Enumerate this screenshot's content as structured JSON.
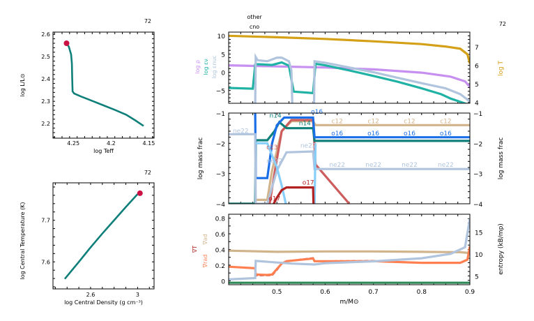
{
  "chart_data": [
    {
      "id": "hr",
      "type": "line",
      "title_right": "72",
      "xlabel": "log Teff",
      "ylabel": "log L/L⊙",
      "xlim": [
        4.277,
        4.143
      ],
      "ylim": [
        2.135,
        2.61
      ],
      "xticks": [
        4.25,
        4.2,
        4.15
      ],
      "xtick_labels": [
        "4.25",
        "4.2",
        "4.15"
      ],
      "yticks": [
        2.2,
        2.3,
        2.4,
        2.5,
        2.6
      ],
      "ytick_labels": [
        "2.2",
        "2.3",
        "2.4",
        "2.5",
        "2.6"
      ],
      "series": [
        {
          "name": "track",
          "color": "#0f7f7a",
          "x": [
            4.259,
            4.256,
            4.253,
            4.252,
            4.2515,
            4.251,
            4.249,
            4.24,
            4.225,
            4.21,
            4.195,
            4.18,
            4.168,
            4.157
          ],
          "y": [
            2.559,
            2.545,
            2.51,
            2.47,
            2.4,
            2.345,
            2.335,
            2.322,
            2.302,
            2.282,
            2.262,
            2.24,
            2.215,
            2.19
          ]
        }
      ],
      "marker": {
        "x": 4.259,
        "y": 2.56,
        "color": "#cc1144"
      }
    },
    {
      "id": "rhoT",
      "type": "line",
      "title_right": "72",
      "xlabel": "log Central Density (g cm⁻³)",
      "ylabel": "log Central Temperature (K)",
      "xlim": [
        2.28,
        3.14
      ],
      "ylim": [
        7.535,
        7.79
      ],
      "xticks": [
        2.6,
        3.0
      ],
      "xtick_labels": [
        "2.6",
        "3"
      ],
      "yticks": [
        7.6,
        7.7
      ],
      "ytick_labels": [
        "7.6",
        "7.7"
      ],
      "series": [
        {
          "name": "track",
          "color": "#0f7f7a",
          "x": [
            2.38,
            2.5,
            2.6,
            2.7,
            2.8,
            2.9,
            3.0
          ],
          "y": [
            7.559,
            7.6,
            7.635,
            7.668,
            7.7,
            7.732,
            7.763
          ]
        }
      ],
      "marker": {
        "x": 3.02,
        "y": 7.765,
        "color": "#cc1144"
      }
    },
    {
      "id": "profile-top",
      "type": "line",
      "title_right": "72",
      "top_labels": [
        "other",
        "cno"
      ],
      "xlim": [
        0.4,
        0.9
      ],
      "ylim_left": [
        -8.5,
        11
      ],
      "ylim_right": [
        3.95,
        7.8
      ],
      "yticks_left": [
        -5,
        0,
        5,
        10
      ],
      "ytick_labels_left": [
        "−5",
        "0",
        "5",
        "10"
      ],
      "yticks_right": [
        4,
        5,
        6,
        7
      ],
      "ytick_labels_right": [
        "4",
        "5",
        "6",
        "7"
      ],
      "ylabel_left": [
        {
          "text": "log ρ",
          "color": "#c68ff0"
        },
        {
          "text": "log εν",
          "color": "#20b2a4"
        },
        {
          "text": "log εnuc",
          "color": "#b0c4de"
        }
      ],
      "ylabel_right": {
        "text": "log T",
        "color": "#d4a017"
      },
      "series": [
        {
          "name": "log T",
          "axis": "right",
          "color": "#d4a017",
          "x": [
            0.4,
            0.5,
            0.6,
            0.7,
            0.8,
            0.85,
            0.88,
            0.895,
            0.9
          ],
          "y": [
            7.6,
            7.52,
            7.43,
            7.3,
            7.15,
            7.02,
            6.9,
            6.6,
            6.1
          ]
        },
        {
          "name": "log rho",
          "axis": "left",
          "color": "#c68ff0",
          "x": [
            0.4,
            0.5,
            0.6,
            0.7,
            0.8,
            0.86,
            0.89,
            0.9
          ],
          "y": [
            1.9,
            1.6,
            1.3,
            0.8,
            -0.1,
            -1.2,
            -2.5,
            -4
          ]
        },
        {
          "name": "log eps_nu",
          "axis": "left",
          "color": "#20b2a4",
          "x": [
            0.4,
            0.45,
            0.455,
            0.46,
            0.49,
            0.51,
            0.525,
            0.53,
            0.535,
            0.575,
            0.58,
            0.6,
            0.65,
            0.7,
            0.75,
            0.8,
            0.84,
            0.86,
            0.9
          ],
          "y": [
            -4.3,
            -4.5,
            2.1,
            2.2,
            2.0,
            2.7,
            1.8,
            -2,
            -5.3,
            -5.7,
            2.3,
            1.9,
            0.5,
            -1,
            -2.6,
            -4.4,
            -6,
            -7.2,
            -9
          ]
        },
        {
          "name": "log eps_nuc",
          "axis": "left",
          "color": "#b0c4de",
          "x": [
            0.455,
            0.456,
            0.46,
            0.48,
            0.5,
            0.51,
            0.525,
            0.53,
            0.532,
            0.577,
            0.578,
            0.6,
            0.65,
            0.7,
            0.75,
            0.8,
            0.85,
            0.88,
            0.9
          ],
          "y": [
            -9,
            4.2,
            3.3,
            3.0,
            4.0,
            4.0,
            3.0,
            0.5,
            -9,
            -9,
            3.0,
            2.6,
            1.3,
            0,
            -1.5,
            -3,
            -4.4,
            -6,
            -8
          ]
        }
      ]
    },
    {
      "id": "profile-mid",
      "type": "line",
      "xlim": [
        0.4,
        0.9
      ],
      "ylim": [
        -4,
        -1
      ],
      "yticks": [
        -4,
        -3,
        -2,
        -1
      ],
      "ytick_labels": [
        "−4",
        "−3",
        "−2",
        "−1"
      ],
      "ylabel_left": "log mass frac",
      "ylabel_right": "log mass frac",
      "series": [
        {
          "name": "c12",
          "color": "#d2b48c",
          "x": [
            0.4,
            0.455,
            0.456,
            0.48,
            0.49,
            0.51,
            0.53,
            0.575,
            0.58,
            0.9
          ],
          "y": [
            -4,
            -4,
            -3.87,
            -3.87,
            -2.9,
            -1.6,
            -1.27,
            -1.27,
            -1.4,
            -1.4
          ]
        },
        {
          "name": "c13",
          "color": "#cd5c5c",
          "x": [
            0.485,
            0.495,
            0.51,
            0.53,
            0.575,
            0.58,
            0.65
          ],
          "y": [
            -4,
            -3.0,
            -1.6,
            -1.23,
            -1.23,
            -2.7,
            -4
          ]
        },
        {
          "name": "n14",
          "color": "#0f7f7a",
          "x": [
            0.4,
            0.455,
            0.456,
            0.48,
            0.495,
            0.505,
            0.52,
            0.575,
            0.578,
            0.9
          ],
          "y": [
            -4,
            -4,
            -1.9,
            -1.9,
            -1.6,
            -1.3,
            -1.5,
            -1.5,
            -1.92,
            -1.92
          ]
        },
        {
          "name": "o16",
          "color": "#1a6fe6",
          "x": [
            0.455,
            0.456,
            0.48,
            0.49,
            0.5,
            0.515,
            0.53,
            0.575,
            0.578,
            0.9
          ],
          "y": [
            -1,
            -3.15,
            -3.15,
            -2.0,
            -1.4,
            -1.15,
            -1.15,
            -1.15,
            -1.8,
            -1.8
          ]
        },
        {
          "name": "ne22",
          "color": "#b0c4de",
          "x": [
            0.4,
            0.455,
            0.456,
            0.48,
            0.5,
            0.52,
            0.575,
            0.578,
            0.9
          ],
          "y": [
            -1.7,
            -1.7,
            -4,
            -4,
            -2.9,
            -2.3,
            -2.27,
            -2.85,
            -2.85
          ]
        },
        {
          "name": "mg24",
          "color": "#87cefa",
          "x": [
            0.456,
            0.48,
            0.5,
            0.51,
            0.52,
            0.578,
            0.58
          ],
          "y": [
            -2.0,
            -2.0,
            -2.8,
            -3.4,
            -4.1,
            -4.1,
            -2.0
          ]
        },
        {
          "name": "o17",
          "color": "#b22222",
          "x": [
            0.49,
            0.5,
            0.51,
            0.52,
            0.575,
            0.576
          ],
          "y": [
            -4.1,
            -3.8,
            -3.55,
            -3.46,
            -3.46,
            -4.1
          ]
        }
      ],
      "annotations": [
        {
          "text": "ne22",
          "color": "#b0c4de",
          "x": 0.425,
          "y": -1.66
        },
        {
          "text": "n14",
          "color": "#0f7f7a",
          "x": 0.497,
          "y": -1.15
        },
        {
          "text": "c13",
          "color": "#cd5c5c",
          "x": 0.49,
          "y": -2.2
        },
        {
          "text": "ne22",
          "color": "#b0c4de",
          "x": 0.495,
          "y": -2.65
        },
        {
          "text": "o16",
          "color": "#1a6fe6",
          "x": 0.583,
          "y": -1.02
        },
        {
          "text": "n14",
          "color": "#0f7f7a",
          "x": 0.558,
          "y": -1.4
        },
        {
          "text": "ne22",
          "color": "#b0c4de",
          "x": 0.565,
          "y": -2.14
        },
        {
          "text": "o17",
          "color": "#b22222",
          "x": 0.565,
          "y": -3.36
        },
        {
          "text": "o17",
          "color": "#b22222",
          "x": 0.495,
          "y": -3.9
        },
        {
          "text": "c12",
          "color": "#d2b48c",
          "x": 0.625,
          "y": -1.33
        },
        {
          "text": "c12",
          "color": "#d2b48c",
          "x": 0.7,
          "y": -1.33
        },
        {
          "text": "c12",
          "color": "#d2b48c",
          "x": 0.775,
          "y": -1.33
        },
        {
          "text": "c12",
          "color": "#d2b48c",
          "x": 0.85,
          "y": -1.33
        },
        {
          "text": "o16",
          "color": "#1a6fe6",
          "x": 0.625,
          "y": -1.74
        },
        {
          "text": "o16",
          "color": "#1a6fe6",
          "x": 0.7,
          "y": -1.74
        },
        {
          "text": "o16",
          "color": "#1a6fe6",
          "x": 0.775,
          "y": -1.74
        },
        {
          "text": "o16",
          "color": "#1a6fe6",
          "x": 0.85,
          "y": -1.74
        },
        {
          "text": "ne22",
          "color": "#b0c4de",
          "x": 0.625,
          "y": -2.78
        },
        {
          "text": "ne22",
          "color": "#b0c4de",
          "x": 0.7,
          "y": -2.78
        },
        {
          "text": "ne22",
          "color": "#b0c4de",
          "x": 0.775,
          "y": -2.78
        },
        {
          "text": "ne22",
          "color": "#b0c4de",
          "x": 0.85,
          "y": -2.78
        }
      ]
    },
    {
      "id": "profile-bottom",
      "type": "line",
      "xlabel": "m/M⊙",
      "xlim": [
        0.4,
        0.9
      ],
      "xticks": [
        0.5,
        0.6,
        0.7,
        0.8,
        0.9
      ],
      "xtick_labels": [
        "0.5",
        "0.6",
        "0.7",
        "0.8",
        "0.9"
      ],
      "ylim_left": [
        -0.05,
        0.85
      ],
      "yticks_left": [
        0,
        0.2,
        0.4,
        0.6,
        0.8
      ],
      "ytick_labels_left": [
        "0",
        "0.2",
        "0.4",
        "0.6",
        "0.8"
      ],
      "ylim_right": [
        3,
        19
      ],
      "yticks_right": [
        5,
        10,
        15
      ],
      "ytick_labels_right": [
        "5",
        "10",
        "15"
      ],
      "ylabel_left": [
        {
          "text": "∇ad",
          "color": "#d2b48c"
        },
        {
          "text": "∇T",
          "color": "#b22222"
        },
        {
          "text": "∇rad",
          "color": "#ff7f50"
        }
      ],
      "ylabel_right": "entropy (kB/mp)",
      "series": [
        {
          "name": "grad_ad",
          "axis": "left",
          "color": "#d2b48c",
          "x": [
            0.4,
            0.5,
            0.6,
            0.7,
            0.8,
            0.88,
            0.9
          ],
          "y": [
            0.385,
            0.37,
            0.375,
            0.375,
            0.37,
            0.365,
            0.355
          ]
        },
        {
          "name": "grad_T",
          "axis": "left",
          "color": "#b22222",
          "dash": true,
          "x": [
            0.4,
            0.455,
            0.456,
            0.48,
            0.49,
            0.5,
            0.51,
            0.52,
            0.575,
            0.578,
            0.7,
            0.8,
            0.88,
            0.895,
            0.9
          ],
          "y": [
            0.18,
            0.16,
            0.07,
            0.07,
            0.07,
            0.14,
            0.22,
            0.25,
            0.29,
            0.25,
            0.255,
            0.23,
            0.23,
            0.27,
            0.45
          ]
        },
        {
          "name": "grad_rad",
          "axis": "left",
          "color": "#ff7f50",
          "x": [
            0.4,
            0.455,
            0.456,
            0.48,
            0.49,
            0.5,
            0.51,
            0.52,
            0.575,
            0.578,
            0.7,
            0.8,
            0.88,
            0.895,
            0.9
          ],
          "y": [
            0.18,
            0.16,
            0.08,
            0.075,
            0.08,
            0.15,
            0.22,
            0.25,
            0.285,
            0.25,
            0.25,
            0.23,
            0.23,
            0.27,
            0.44
          ]
        },
        {
          "name": "entropy",
          "axis": "right",
          "color": "#b0c4de",
          "x": [
            0.4,
            0.455,
            0.456,
            0.53,
            0.578,
            0.6,
            0.7,
            0.8,
            0.86,
            0.89,
            0.9
          ],
          "y": [
            4.2,
            4.5,
            8.4,
            7.8,
            7.6,
            7.9,
            8.3,
            9.0,
            10.0,
            11.5,
            18
          ]
        },
        {
          "name": "gradr_sub",
          "axis": "left",
          "color": "#2e8b57",
          "x": [
            0.4,
            0.9
          ],
          "y": [
            -0.025,
            -0.025
          ]
        }
      ]
    }
  ]
}
